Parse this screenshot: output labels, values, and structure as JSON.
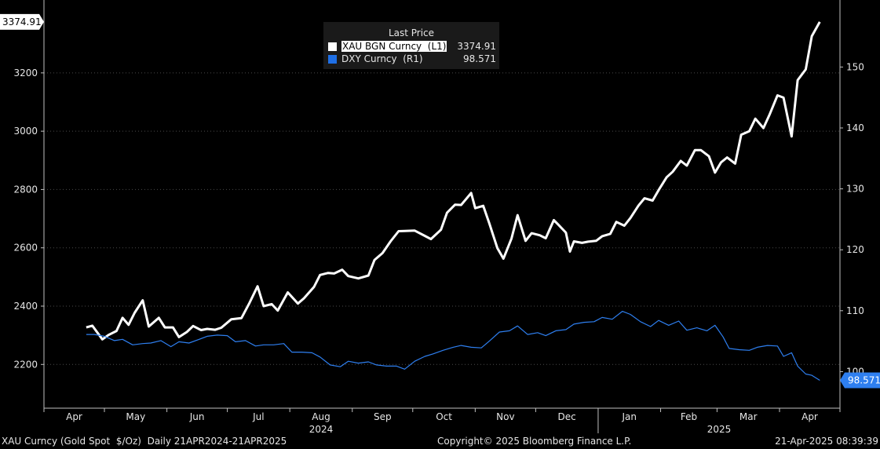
{
  "chart_data": {
    "type": "line",
    "x_start": "2024-04-21",
    "x_end": "2025-04-21",
    "x_month_labels": [
      "Apr",
      "May",
      "Jun",
      "Jul",
      "Aug",
      "Sep",
      "Oct",
      "Nov",
      "Dec",
      "Jan",
      "Feb",
      "Mar",
      "Apr"
    ],
    "x_year_labels": [
      "2024",
      "2025"
    ],
    "left_axis": {
      "ticks": [
        2200,
        2400,
        2600,
        2800,
        3000,
        3200
      ],
      "range": [
        2050,
        3450
      ]
    },
    "right_axis": {
      "ticks": [
        100,
        110,
        120,
        130,
        140,
        150
      ],
      "range": [
        94,
        161
      ]
    },
    "series": [
      {
        "name": "XAU BGN Curncy",
        "axis": "L1",
        "color": "#ffffff",
        "last": "3374.91",
        "points": [
          [
            "2024-04-22",
            2327
          ],
          [
            "2024-04-25",
            2333
          ],
          [
            "2024-04-30",
            2286
          ],
          [
            "2024-05-03",
            2301
          ],
          [
            "2024-05-07",
            2315
          ],
          [
            "2024-05-10",
            2360
          ],
          [
            "2024-05-13",
            2336
          ],
          [
            "2024-05-16",
            2377
          ],
          [
            "2024-05-20",
            2420
          ],
          [
            "2024-05-23",
            2330
          ],
          [
            "2024-05-28",
            2360
          ],
          [
            "2024-05-31",
            2327
          ],
          [
            "2024-06-04",
            2327
          ],
          [
            "2024-06-07",
            2294
          ],
          [
            "2024-06-11",
            2312
          ],
          [
            "2024-06-14",
            2332
          ],
          [
            "2024-06-18",
            2318
          ],
          [
            "2024-06-21",
            2322
          ],
          [
            "2024-06-25",
            2319
          ],
          [
            "2024-06-28",
            2326
          ],
          [
            "2024-07-03",
            2355
          ],
          [
            "2024-07-08",
            2359
          ],
          [
            "2024-07-12",
            2411
          ],
          [
            "2024-07-16",
            2468
          ],
          [
            "2024-07-19",
            2400
          ],
          [
            "2024-07-23",
            2407
          ],
          [
            "2024-07-26",
            2385
          ],
          [
            "2024-07-31",
            2447
          ],
          [
            "2024-08-05",
            2409
          ],
          [
            "2024-08-08",
            2427
          ],
          [
            "2024-08-13",
            2466
          ],
          [
            "2024-08-16",
            2507
          ],
          [
            "2024-08-20",
            2514
          ],
          [
            "2024-08-23",
            2512
          ],
          [
            "2024-08-27",
            2525
          ],
          [
            "2024-08-30",
            2503
          ],
          [
            "2024-09-04",
            2495
          ],
          [
            "2024-09-09",
            2505
          ],
          [
            "2024-09-12",
            2558
          ],
          [
            "2024-09-16",
            2582
          ],
          [
            "2024-09-20",
            2622
          ],
          [
            "2024-09-24",
            2657
          ],
          [
            "2024-09-27",
            2658
          ],
          [
            "2024-10-02",
            2659
          ],
          [
            "2024-10-07",
            2641
          ],
          [
            "2024-10-10",
            2630
          ],
          [
            "2024-10-15",
            2662
          ],
          [
            "2024-10-18",
            2720
          ],
          [
            "2024-10-22",
            2748
          ],
          [
            "2024-10-25",
            2747
          ],
          [
            "2024-10-30",
            2788
          ],
          [
            "2024-11-01",
            2736
          ],
          [
            "2024-11-05",
            2744
          ],
          [
            "2024-11-08",
            2684
          ],
          [
            "2024-11-12",
            2599
          ],
          [
            "2024-11-15",
            2563
          ],
          [
            "2024-11-19",
            2632
          ],
          [
            "2024-11-22",
            2712
          ],
          [
            "2024-11-26",
            2624
          ],
          [
            "2024-11-29",
            2650
          ],
          [
            "2024-12-03",
            2643
          ],
          [
            "2024-12-06",
            2633
          ],
          [
            "2024-12-10",
            2695
          ],
          [
            "2024-12-12",
            2681
          ],
          [
            "2024-12-16",
            2652
          ],
          [
            "2024-12-18",
            2587
          ],
          [
            "2024-12-20",
            2622
          ],
          [
            "2024-12-24",
            2617
          ],
          [
            "2024-12-27",
            2621
          ],
          [
            "2024-12-31",
            2624
          ],
          [
            "2025-01-03",
            2640
          ],
          [
            "2025-01-07",
            2648
          ],
          [
            "2025-01-10",
            2689
          ],
          [
            "2025-01-14",
            2676
          ],
          [
            "2025-01-17",
            2702
          ],
          [
            "2025-01-21",
            2745
          ],
          [
            "2025-01-24",
            2770
          ],
          [
            "2025-01-28",
            2762
          ],
          [
            "2025-01-31",
            2798
          ],
          [
            "2025-02-04",
            2842
          ],
          [
            "2025-02-07",
            2861
          ],
          [
            "2025-02-11",
            2898
          ],
          [
            "2025-02-14",
            2882
          ],
          [
            "2025-02-18",
            2935
          ],
          [
            "2025-02-21",
            2935
          ],
          [
            "2025-02-25",
            2914
          ],
          [
            "2025-02-28",
            2858
          ],
          [
            "2025-03-03",
            2893
          ],
          [
            "2025-03-06",
            2910
          ],
          [
            "2025-03-10",
            2889
          ],
          [
            "2025-03-13",
            2988
          ],
          [
            "2025-03-17",
            3000
          ],
          [
            "2025-03-20",
            3043
          ],
          [
            "2025-03-24",
            3011
          ],
          [
            "2025-03-27",
            3056
          ],
          [
            "2025-03-31",
            3123
          ],
          [
            "2025-04-03",
            3115
          ],
          [
            "2025-04-07",
            2982
          ],
          [
            "2025-04-10",
            3175
          ],
          [
            "2025-04-14",
            3212
          ],
          [
            "2025-04-17",
            3326
          ],
          [
            "2025-04-21",
            3374.91
          ]
        ]
      },
      {
        "name": "DXY Curncy",
        "axis": "R1",
        "color": "#2e7ff0",
        "last": "98.571",
        "points": [
          [
            "2024-04-22",
            106.1
          ],
          [
            "2024-04-26",
            106.1
          ],
          [
            "2024-05-01",
            105.8
          ],
          [
            "2024-05-06",
            105.1
          ],
          [
            "2024-05-10",
            105.3
          ],
          [
            "2024-05-15",
            104.4
          ],
          [
            "2024-05-20",
            104.6
          ],
          [
            "2024-05-24",
            104.7
          ],
          [
            "2024-05-29",
            105.1
          ],
          [
            "2024-06-03",
            104.1
          ],
          [
            "2024-06-07",
            104.9
          ],
          [
            "2024-06-12",
            104.7
          ],
          [
            "2024-06-17",
            105.3
          ],
          [
            "2024-06-21",
            105.8
          ],
          [
            "2024-06-26",
            106.0
          ],
          [
            "2024-07-01",
            105.9
          ],
          [
            "2024-07-05",
            104.9
          ],
          [
            "2024-07-10",
            105.1
          ],
          [
            "2024-07-15",
            104.2
          ],
          [
            "2024-07-19",
            104.4
          ],
          [
            "2024-07-24",
            104.4
          ],
          [
            "2024-07-29",
            104.6
          ],
          [
            "2024-08-02",
            103.2
          ],
          [
            "2024-08-07",
            103.2
          ],
          [
            "2024-08-12",
            103.1
          ],
          [
            "2024-08-16",
            102.4
          ],
          [
            "2024-08-21",
            101.1
          ],
          [
            "2024-08-26",
            100.8
          ],
          [
            "2024-08-30",
            101.7
          ],
          [
            "2024-09-04",
            101.4
          ],
          [
            "2024-09-09",
            101.6
          ],
          [
            "2024-09-13",
            101.1
          ],
          [
            "2024-09-18",
            100.9
          ],
          [
            "2024-09-23",
            100.9
          ],
          [
            "2024-09-27",
            100.4
          ],
          [
            "2024-10-02",
            101.7
          ],
          [
            "2024-10-07",
            102.5
          ],
          [
            "2024-10-11",
            102.9
          ],
          [
            "2024-10-16",
            103.5
          ],
          [
            "2024-10-21",
            104.0
          ],
          [
            "2024-10-25",
            104.3
          ],
          [
            "2024-10-30",
            104.0
          ],
          [
            "2024-11-04",
            103.9
          ],
          [
            "2024-11-08",
            105.0
          ],
          [
            "2024-11-13",
            106.5
          ],
          [
            "2024-11-18",
            106.7
          ],
          [
            "2024-11-22",
            107.5
          ],
          [
            "2024-11-27",
            106.1
          ],
          [
            "2024-12-02",
            106.4
          ],
          [
            "2024-12-06",
            105.9
          ],
          [
            "2024-12-11",
            106.7
          ],
          [
            "2024-12-16",
            106.9
          ],
          [
            "2024-12-20",
            107.8
          ],
          [
            "2024-12-25",
            108.1
          ],
          [
            "2024-12-30",
            108.2
          ],
          [
            "2025-01-03",
            108.9
          ],
          [
            "2025-01-08",
            108.6
          ],
          [
            "2025-01-13",
            109.9
          ],
          [
            "2025-01-17",
            109.4
          ],
          [
            "2025-01-22",
            108.2
          ],
          [
            "2025-01-27",
            107.4
          ],
          [
            "2025-01-31",
            108.4
          ],
          [
            "2025-02-05",
            107.6
          ],
          [
            "2025-02-10",
            108.3
          ],
          [
            "2025-02-14",
            106.8
          ],
          [
            "2025-02-19",
            107.2
          ],
          [
            "2025-02-24",
            106.7
          ],
          [
            "2025-02-28",
            107.6
          ],
          [
            "2025-03-04",
            105.7
          ],
          [
            "2025-03-07",
            103.8
          ],
          [
            "2025-03-12",
            103.6
          ],
          [
            "2025-03-17",
            103.5
          ],
          [
            "2025-03-21",
            104.0
          ],
          [
            "2025-03-26",
            104.3
          ],
          [
            "2025-03-31",
            104.2
          ],
          [
            "2025-04-03",
            102.5
          ],
          [
            "2025-04-07",
            103.1
          ],
          [
            "2025-04-10",
            100.9
          ],
          [
            "2025-04-14",
            99.6
          ],
          [
            "2025-04-17",
            99.4
          ],
          [
            "2025-04-21",
            98.571
          ]
        ]
      }
    ]
  },
  "legend": {
    "title": "Last Price",
    "items": [
      {
        "label": "XAU BGN Curncy  (L1)",
        "value": "3374.91",
        "color": "#ffffff"
      },
      {
        "label": "DXY Curncy  (R1)",
        "value": "98.571",
        "color": "#1f6fe5"
      }
    ]
  },
  "badges": {
    "left": "3374.91",
    "right": "98.571"
  },
  "footer": {
    "left": "XAU Curncy (Gold Spot  $/Oz)  Daily 21APR2024-21APR2025",
    "center": "Copyright© 2025 Bloomberg Finance L.P.",
    "right": "21-Apr-2025 08:39:39"
  }
}
